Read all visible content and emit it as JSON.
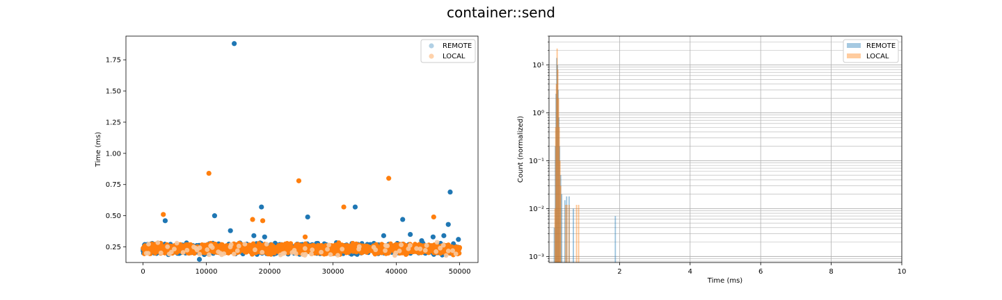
{
  "title": "container::send",
  "colors": {
    "remote": "#1f77b4",
    "local": "#ff7f0e",
    "grid": "#b0b0b0"
  },
  "chart_data": [
    {
      "type": "scatter",
      "xlabel": "",
      "ylabel": "Time (ms)",
      "xlim": [
        -2700,
        52900
      ],
      "ylim": [
        0.125,
        1.94
      ],
      "xticks": [
        0,
        10000,
        20000,
        30000,
        40000,
        50000
      ],
      "xtick_labels": [
        "0",
        "10000",
        "20000",
        "30000",
        "40000",
        "50000"
      ],
      "yticks": [
        0.25,
        0.5,
        0.75,
        1.0,
        1.25,
        1.5,
        1.75
      ],
      "ytick_labels": [
        "0.25",
        "0.50",
        "0.75",
        "1.00",
        "1.25",
        "1.50",
        "1.75"
      ],
      "legend": {
        "position": "upper right",
        "entries": [
          "REMOTE",
          "LOCAL"
        ]
      },
      "grid": false,
      "bulk": {
        "x_range": [
          0,
          50000
        ],
        "y_range": [
          0.18,
          0.29
        ],
        "note_series": [
          "REMOTE",
          "LOCAL"
        ]
      },
      "series": [
        {
          "name": "REMOTE",
          "outliers": [
            [
              14400,
              1.88
            ],
            [
              48500,
              0.69
            ],
            [
              26000,
              0.49
            ],
            [
              11300,
              0.5
            ],
            [
              3500,
              0.46
            ],
            [
              18700,
              0.57
            ],
            [
              33500,
              0.57
            ],
            [
              41000,
              0.47
            ],
            [
              48200,
              0.43
            ],
            [
              13800,
              0.38
            ],
            [
              17500,
              0.34
            ],
            [
              19200,
              0.33
            ],
            [
              38000,
              0.34
            ],
            [
              42200,
              0.35
            ],
            [
              45800,
              0.33
            ],
            [
              8900,
              0.15
            ],
            [
              44000,
              0.3
            ],
            [
              49800,
              0.31
            ],
            [
              47500,
              0.34
            ]
          ]
        },
        {
          "name": "LOCAL",
          "outliers": [
            [
              10400,
              0.84
            ],
            [
              38800,
              0.8
            ],
            [
              24600,
              0.78
            ],
            [
              31700,
              0.57
            ],
            [
              3200,
              0.51
            ],
            [
              45900,
              0.49
            ],
            [
              17300,
              0.47
            ],
            [
              18900,
              0.46
            ],
            [
              25600,
              0.33
            ]
          ]
        }
      ]
    },
    {
      "type": "histogram",
      "xlabel": "Time (ms)",
      "ylabel": "Count (normalized)",
      "xlim": [
        0.0,
        10.0
      ],
      "ylim": [
        0.00075,
        40
      ],
      "yscale": "log",
      "xticks": [
        2,
        4,
        6,
        8,
        10
      ],
      "xtick_labels": [
        "2",
        "4",
        "6",
        "8",
        "10"
      ],
      "yticks": [
        0.001,
        0.01,
        0.1,
        1,
        10
      ],
      "ytick_labels": [
        "10⁻³",
        "10⁻²",
        "10⁻¹",
        "10⁰",
        "10¹"
      ],
      "legend": {
        "position": "upper right",
        "entries": [
          "REMOTE",
          "LOCAL"
        ]
      },
      "grid": true,
      "series": [
        {
          "name": "REMOTE",
          "bins": [
            [
              0.15,
              0.004
            ],
            [
              0.18,
              0.2
            ],
            [
              0.2,
              2.5
            ],
            [
              0.22,
              14
            ],
            [
              0.24,
              10
            ],
            [
              0.26,
              3
            ],
            [
              0.28,
              0.8
            ],
            [
              0.3,
              0.2
            ],
            [
              0.33,
              0.05
            ],
            [
              0.36,
              0.02
            ],
            [
              0.45,
              0.015
            ],
            [
              0.5,
              0.018
            ],
            [
              0.57,
              0.018
            ],
            [
              0.69,
              0.01
            ],
            [
              1.88,
              0.007
            ]
          ]
        },
        {
          "name": "LOCAL",
          "bins": [
            [
              0.17,
              0.01
            ],
            [
              0.19,
              0.5
            ],
            [
              0.21,
              4
            ],
            [
              0.23,
              22
            ],
            [
              0.25,
              8
            ],
            [
              0.27,
              2
            ],
            [
              0.29,
              0.5
            ],
            [
              0.31,
              0.1
            ],
            [
              0.33,
              0.03
            ],
            [
              0.47,
              0.012
            ],
            [
              0.51,
              0.012
            ],
            [
              0.57,
              0.012
            ],
            [
              0.78,
              0.012
            ],
            [
              0.84,
              0.012
            ]
          ]
        }
      ]
    }
  ]
}
